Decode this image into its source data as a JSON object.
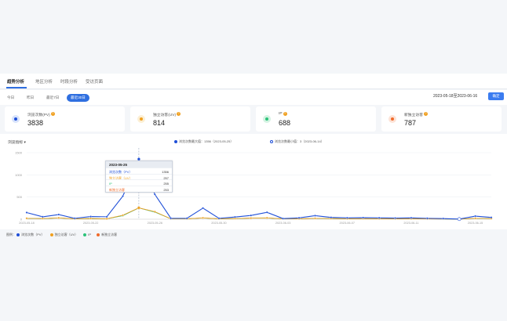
{
  "tabs": [
    "趋势分析",
    "地区分析",
    "时段分析",
    "受访页面"
  ],
  "filters": [
    "今日",
    "昨日",
    "最近7日",
    "最近30日"
  ],
  "date_range": "2023-05-18至2023-06-16",
  "confirm_label": "确定",
  "cards": [
    {
      "label": "浏览次数(PV)",
      "value": "3838",
      "color": "#1f4fd8",
      "bg": "#d8e3fb"
    },
    {
      "label": "独立访客(UV)",
      "value": "814",
      "color": "#f0a020",
      "bg": "#fcefd4"
    },
    {
      "label": "IP",
      "value": "688",
      "color": "#2cc27a",
      "bg": "#d4f3e2"
    },
    {
      "label": "新独立访客",
      "value": "787",
      "color": "#f06a2a",
      "bg": "#fde3d6"
    }
  ],
  "selector_label": "浏览指标",
  "legend_top": [
    {
      "label": "浏览次数最大值：1356（2023-05-25）",
      "color": "#1f4fd8"
    },
    {
      "label": "浏览次数最小值：3（2023-06-14）",
      "color": "#1f4fd8"
    }
  ],
  "tooltip": {
    "date": "2023-05-25",
    "rows": [
      {
        "label": "浏览次数（PV）",
        "value": "1356",
        "color": "#1f4fd8"
      },
      {
        "label": "独立访客（UV）",
        "value": "257",
        "color": "#f0a020"
      },
      {
        "label": "IP",
        "value": "255",
        "color": "#2cc27a"
      },
      {
        "label": "新独立访客",
        "value": "253",
        "color": "#f06a2a"
      }
    ]
  },
  "bottom_legend_title": "图例：",
  "chart_data": {
    "type": "line",
    "y_ticks": [
      "1500",
      "1000",
      "500",
      "0"
    ],
    "ylim": [
      0,
      1500
    ],
    "x_tick_labels": [
      "2023-05-18",
      "2023-05-22",
      "2023-05-26",
      "2023-05-30",
      "2023-06-03",
      "2023-06-07",
      "2023-06-11",
      "2023-06-15"
    ],
    "x": [
      "05-18",
      "05-19",
      "05-20",
      "05-21",
      "05-22",
      "05-23",
      "05-24",
      "05-25",
      "05-26",
      "05-27",
      "05-28",
      "05-29",
      "05-30",
      "05-31",
      "06-01",
      "06-02",
      "06-03",
      "06-04",
      "06-05",
      "06-06",
      "06-07",
      "06-08",
      "06-09",
      "06-10",
      "06-11",
      "06-12",
      "06-13",
      "06-14",
      "06-15",
      "06-16"
    ],
    "series": [
      {
        "name": "浏览次数（PV）",
        "color": "#1f4fd8",
        "values": [
          150,
          55,
          105,
          20,
          60,
          55,
          520,
          1356,
          560,
          20,
          20,
          250,
          20,
          50,
          85,
          155,
          15,
          30,
          80,
          40,
          30,
          35,
          30,
          25,
          30,
          20,
          15,
          3,
          70,
          40
        ]
      },
      {
        "name": "独立访客（UV）",
        "color": "#f0a020",
        "values": [
          20,
          15,
          30,
          10,
          15,
          10,
          90,
          257,
          170,
          10,
          10,
          30,
          10,
          15,
          25,
          30,
          10,
          10,
          20,
          15,
          10,
          12,
          10,
          10,
          10,
          8,
          6,
          2,
          20,
          15
        ]
      },
      {
        "name": "IP",
        "color": "#2cc27a",
        "values": [
          18,
          14,
          28,
          9,
          14,
          9,
          80,
          255,
          160,
          9,
          9,
          28,
          9,
          14,
          24,
          28,
          9,
          9,
          18,
          14,
          9,
          11,
          9,
          9,
          9,
          7,
          5,
          2,
          18,
          14
        ]
      },
      {
        "name": "新独立访客",
        "color": "#f06a2a",
        "values": [
          19,
          14,
          29,
          9,
          14,
          9,
          85,
          253,
          165,
          9,
          9,
          29,
          9,
          14,
          24,
          29,
          9,
          9,
          19,
          14,
          9,
          11,
          9,
          9,
          9,
          7,
          5,
          2,
          19,
          14
        ]
      }
    ]
  }
}
